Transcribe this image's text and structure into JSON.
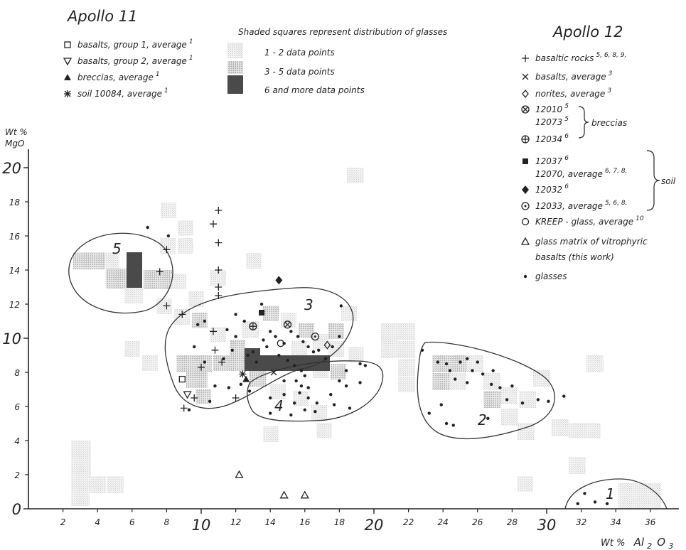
{
  "chart_data": {
    "type": "scatter",
    "xlabel_prefix": "Wt %",
    "xlabel_oxide": "Al",
    "xlabel_sub1": "2",
    "xlabel_mid": "O",
    "xlabel_sub2": "3",
    "ylabel_line1": "Wt %",
    "ylabel_line2": "MgO",
    "xlim": [
      0,
      38
    ],
    "ylim": [
      0,
      21
    ],
    "x_ticks_minor": [
      "2",
      "4",
      "6",
      "8",
      "12",
      "14",
      "16",
      "18",
      "22",
      "24",
      "26",
      "28",
      "32",
      "34",
      "36"
    ],
    "x_ticks_major": [
      "10",
      "20",
      "30"
    ],
    "y_ticks_minor": [
      "2",
      "4",
      "6",
      "8",
      "12",
      "14",
      "16",
      "18"
    ],
    "y_ticks_major": [
      "0",
      "10",
      "20"
    ],
    "shading_legend": {
      "title": "Shaded squares represent distribution of glasses",
      "items": [
        "1 - 2 data points",
        "3 - 5 data points",
        "6  and more data points"
      ]
    },
    "apollo11": {
      "title": "Apollo 11",
      "items": [
        {
          "symbol": "□",
          "label": "basalts, group 1, average",
          "ref": "1"
        },
        {
          "symbol": "▽",
          "label": "basalts, group 2, average",
          "ref": "1"
        },
        {
          "symbol": "▲",
          "label": "breccias, average",
          "ref": "1"
        },
        {
          "symbol": "✱",
          "label": "soil 10084, average",
          "ref": "1"
        }
      ]
    },
    "apollo12": {
      "title": "Apollo 12",
      "items": [
        {
          "symbol": "+",
          "label": "basaltic rocks",
          "ref": "5, 6, 8, 9,"
        },
        {
          "symbol": "×",
          "label": "basalts, average",
          "ref": "3"
        },
        {
          "symbol": "◇",
          "label": "norites, average",
          "ref": "3"
        },
        {
          "symbol": "⊗",
          "label": "12010",
          "ref": "5"
        },
        {
          "symbol": "",
          "label": "12073",
          "ref": "5"
        },
        {
          "symbol": "⊕",
          "label": "12034",
          "ref": "6"
        },
        {
          "symbol": "■",
          "label": "12037",
          "ref": "6"
        },
        {
          "symbol": "",
          "label": "12070, average",
          "ref": "6, 7, 8,"
        },
        {
          "symbol": "◆",
          "label": "12032",
          "ref": "6"
        },
        {
          "symbol": "⊙",
          "label": "12033, average",
          "ref": "5, 6, 8,"
        },
        {
          "symbol": "○",
          "label": "KREEP - glass, average",
          "ref": "10"
        },
        {
          "symbol": "△",
          "label": "glass matrix of vitrophyric",
          "ref": ""
        },
        {
          "symbol": "",
          "label": "basalts (this work)",
          "ref": ""
        },
        {
          "symbol": "•",
          "label": "glasses",
          "ref": ""
        }
      ],
      "brace_breccias": "breccias",
      "brace_soil": "soil"
    },
    "region_labels": [
      "5",
      "3",
      "4",
      "2",
      "1"
    ],
    "series": [
      {
        "name": "basaltic rocks",
        "marker": "+",
        "points": [
          [
            11,
            17.5
          ],
          [
            10.7,
            16.7
          ],
          [
            11,
            15.6
          ],
          [
            8,
            15.2
          ],
          [
            7.6,
            13.9
          ],
          [
            11,
            14
          ],
          [
            11,
            13
          ],
          [
            11,
            12.5
          ],
          [
            8,
            11.9
          ],
          [
            8.9,
            11.4
          ],
          [
            10.7,
            10.4
          ],
          [
            10.8,
            9.3
          ],
          [
            11.2,
            8.6
          ],
          [
            10,
            8.3
          ],
          [
            9.6,
            6.5
          ],
          [
            12,
            6.5
          ],
          [
            9,
            5.9
          ]
        ]
      },
      {
        "name": "basalts, group 1, average",
        "marker": "square",
        "points": [
          [
            8.9,
            7.6
          ]
        ]
      },
      {
        "name": "basalts, group 2, average",
        "marker": "tri-down",
        "points": [
          [
            9.2,
            6.7
          ]
        ]
      },
      {
        "name": "breccias, average",
        "marker": "tri-up",
        "points": [
          [
            12.6,
            7.6
          ]
        ]
      },
      {
        "name": "soil 10084, average",
        "marker": "asterisk",
        "points": [
          [
            12.4,
            7.9
          ]
        ]
      },
      {
        "name": "basalts, average",
        "marker": "x",
        "points": [
          [
            14.2,
            8
          ]
        ]
      },
      {
        "name": "norites, average",
        "marker": "diamond-open",
        "points": [
          [
            17.3,
            9.6
          ]
        ]
      },
      {
        "name": "12010",
        "marker": "circle-x",
        "points": [
          [
            15,
            10.8
          ]
        ]
      },
      {
        "name": "12034",
        "marker": "circle-plus",
        "points": [
          [
            13,
            10.7
          ]
        ]
      },
      {
        "name": "12037",
        "marker": "square-filled",
        "points": [
          [
            13.5,
            11.5
          ]
        ]
      },
      {
        "name": "12032",
        "marker": "diamond",
        "points": [
          [
            14.5,
            13.4
          ]
        ]
      },
      {
        "name": "12033, average",
        "marker": "circle-dot",
        "points": [
          [
            16.6,
            10.1
          ]
        ]
      },
      {
        "name": "KREEP - glass, average",
        "marker": "circle",
        "points": [
          [
            14.6,
            9.7
          ]
        ]
      },
      {
        "name": "glass matrix of vitrophyric basalts (this work)",
        "marker": "tri-open",
        "points": [
          [
            12.2,
            2
          ],
          [
            14.8,
            0.8
          ],
          [
            16,
            0.8
          ]
        ]
      },
      {
        "name": "glasses",
        "marker": "dot",
        "points": [
          [
            6.9,
            16.5
          ],
          [
            8.1,
            16
          ],
          [
            10.2,
            11
          ],
          [
            9.8,
            10.8
          ],
          [
            9.6,
            9.5
          ],
          [
            10.2,
            8.6
          ],
          [
            11.3,
            8.8
          ],
          [
            11.8,
            9.3
          ],
          [
            12,
            10.1
          ],
          [
            11.5,
            10.5
          ],
          [
            12.7,
            9
          ],
          [
            13,
            9.2
          ],
          [
            13.2,
            8.6
          ],
          [
            12.3,
            7.3
          ],
          [
            12.8,
            6.9
          ],
          [
            11.6,
            7.1
          ],
          [
            10.8,
            7.2
          ],
          [
            9.3,
            5.8
          ],
          [
            10.5,
            6.3
          ],
          [
            13.6,
            9.9
          ],
          [
            13.8,
            9.5
          ],
          [
            14,
            10.4
          ],
          [
            14.3,
            10.1
          ],
          [
            14.5,
            9
          ],
          [
            14.8,
            9.7
          ],
          [
            15.2,
            10.4
          ],
          [
            15.6,
            10.1
          ],
          [
            15.9,
            9.8
          ],
          [
            16.2,
            9.5
          ],
          [
            16.5,
            9.2
          ],
          [
            16.8,
            9.3
          ],
          [
            17.2,
            8.8
          ],
          [
            17.6,
            9.5
          ],
          [
            18,
            10.1
          ],
          [
            18.4,
            8.1
          ],
          [
            18.1,
            11.9
          ],
          [
            15,
            8.7
          ],
          [
            15.4,
            8.4
          ],
          [
            15.8,
            8.1
          ],
          [
            16,
            7.8
          ],
          [
            15.5,
            7.5
          ],
          [
            15.8,
            7.2
          ],
          [
            16.2,
            7.1
          ],
          [
            15.7,
            6.8
          ],
          [
            16.2,
            6.5
          ],
          [
            16.7,
            6.2
          ],
          [
            15.4,
            6.2
          ],
          [
            14.8,
            6.7
          ],
          [
            14,
            6.5
          ],
          [
            14.8,
            7.5
          ],
          [
            15.2,
            5.5
          ],
          [
            16,
            5.8
          ],
          [
            16.6,
            5.7
          ],
          [
            14,
            5.6
          ],
          [
            17.5,
            6.7
          ],
          [
            18,
            7.5
          ],
          [
            18.4,
            7.2
          ],
          [
            19.2,
            8.5
          ],
          [
            19.5,
            8.4
          ],
          [
            19.2,
            7.4
          ],
          [
            18.6,
            5.9
          ],
          [
            17.7,
            6.1
          ],
          [
            12.5,
            11
          ],
          [
            12,
            11.4
          ],
          [
            13.5,
            12
          ],
          [
            22.8,
            9.3
          ],
          [
            23.7,
            8.6
          ],
          [
            24.2,
            8.5
          ],
          [
            24.4,
            8.1
          ],
          [
            25,
            8.6
          ],
          [
            25.4,
            8.8
          ],
          [
            25.4,
            7.4
          ],
          [
            24.7,
            7.6
          ],
          [
            25.7,
            8.1
          ],
          [
            26,
            8.6
          ],
          [
            26.3,
            7.9
          ],
          [
            26.8,
            7.3
          ],
          [
            26.9,
            8.1
          ],
          [
            27.3,
            7.1
          ],
          [
            28,
            7.2
          ],
          [
            27.7,
            6.4
          ],
          [
            28.6,
            6.2
          ],
          [
            29.5,
            6.4
          ],
          [
            30.1,
            6.3
          ],
          [
            31,
            6.6
          ],
          [
            23.9,
            6.1
          ],
          [
            23.2,
            5.6
          ],
          [
            24.2,
            5
          ],
          [
            24.6,
            4.9
          ],
          [
            26.6,
            5.3
          ],
          [
            31.8,
            0.3
          ],
          [
            32.8,
            0.4
          ],
          [
            33.5,
            0.3
          ],
          [
            32.2,
            0.9
          ]
        ]
      }
    ]
  }
}
